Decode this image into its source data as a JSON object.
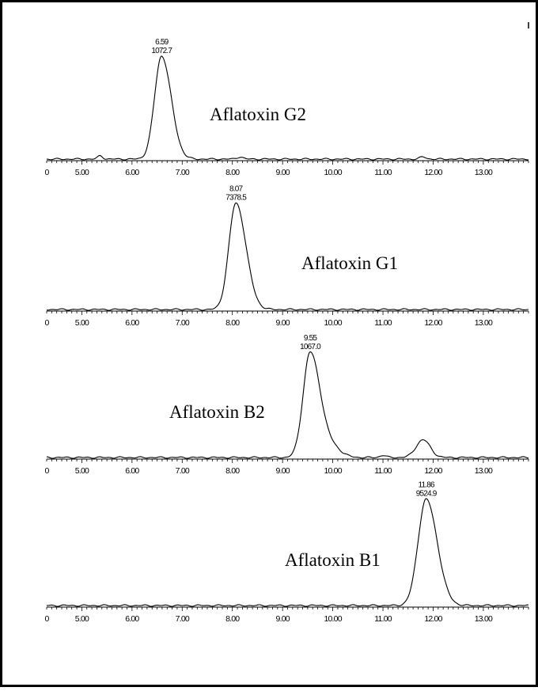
{
  "chart_data": [
    {
      "type": "line",
      "x_ticks": [
        "5.00",
        "6.00",
        "7.00",
        "8.00",
        "9.00",
        "10.00",
        "11.00",
        "12.00",
        "13.00"
      ],
      "xlim": [
        4.3,
        13.9
      ],
      "compound": "Aflatoxin G2",
      "peaks": [
        {
          "rt": "6.59",
          "area": "1072.7",
          "time": 6.59,
          "sigma_l": 0.14,
          "sigma_r": 0.19,
          "height": 0.93
        }
      ],
      "minor_peaks": [
        {
          "time": 5.37,
          "height": 0.03,
          "sigma": 0.05
        },
        {
          "time": 8.15,
          "height": 0.02,
          "sigma": 0.06
        },
        {
          "time": 11.8,
          "height": 0.02,
          "sigma": 0.06
        }
      ]
    },
    {
      "type": "line",
      "x_ticks": [
        "5.00",
        "6.00",
        "7.00",
        "8.00",
        "9.00",
        "10.00",
        "11.00",
        "12.00",
        "13.00"
      ],
      "xlim": [
        4.3,
        13.9
      ],
      "compound": "Aflatoxin G1",
      "peaks": [
        {
          "rt": "8.07",
          "area": "7378.5",
          "time": 8.07,
          "sigma_l": 0.14,
          "sigma_r": 0.2,
          "height": 0.96
        }
      ],
      "minor_peaks": []
    },
    {
      "type": "line",
      "x_ticks": [
        "5.00",
        "6.00",
        "7.00",
        "8.00",
        "9.00",
        "10.00",
        "11.00",
        "12.00",
        "13.00"
      ],
      "xlim": [
        4.3,
        13.9
      ],
      "compound": "Aflatoxin B2",
      "peaks": [
        {
          "rt": "9.55",
          "area": "1067.0",
          "time": 9.55,
          "sigma_l": 0.14,
          "sigma_r": 0.2,
          "height": 0.95
        }
      ],
      "minor_peaks": [
        {
          "time": 10.0,
          "height": 0.08,
          "sigma": 0.18
        },
        {
          "time": 11.8,
          "height": 0.16,
          "sigma": 0.14
        },
        {
          "time": 11.0,
          "height": 0.02,
          "sigma": 0.06
        }
      ]
    },
    {
      "type": "line",
      "x_ticks": [
        "5.00",
        "6.00",
        "7.00",
        "8.00",
        "9.00",
        "10.00",
        "11.00",
        "12.00",
        "13.00"
      ],
      "xlim": [
        4.3,
        13.9
      ],
      "compound": "Aflatoxin B1",
      "peaks": [
        {
          "rt": "11.86",
          "area": "9524.9",
          "time": 11.86,
          "sigma_l": 0.16,
          "sigma_r": 0.22,
          "height": 0.96
        }
      ],
      "minor_peaks": []
    }
  ],
  "colors": {
    "line": "#000000",
    "background": "#ffffff"
  }
}
